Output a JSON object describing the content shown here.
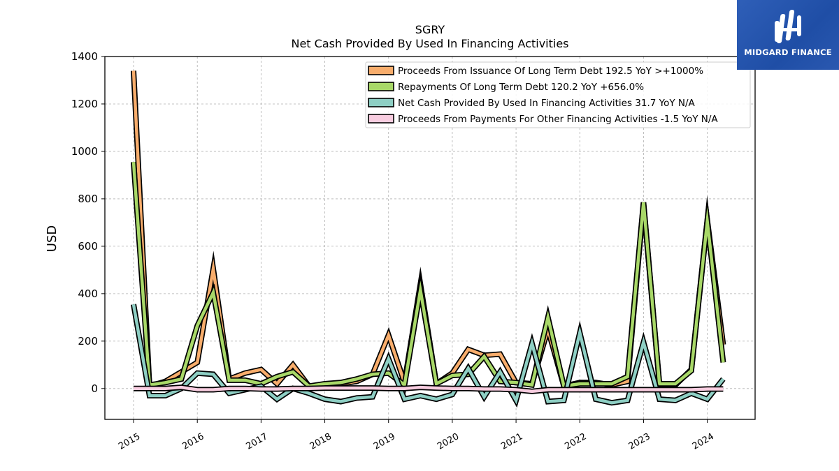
{
  "brand": {
    "name": "MIDGARD FINANCE",
    "icon": "midgard-logo-icon"
  },
  "colors": {
    "proceeds_debt": "#f8ad6c",
    "repayments_debt": "#a8d868",
    "net_cash": "#8ecfc4",
    "other_financing": "#f8cde0",
    "grid": "#b0b0b0",
    "brand_blue": "#2553ab"
  },
  "chart_data": {
    "type": "line",
    "title": "SGRY",
    "subtitle": "Net Cash Provided By Used In Financing Activities",
    "xlabel": "",
    "ylabel": "USD",
    "ylim": [
      -130,
      1400
    ],
    "yticks": [
      0,
      200,
      400,
      600,
      800,
      1000,
      1200,
      1400
    ],
    "xlim": [
      2014.55,
      2024.75
    ],
    "xticks": [
      "2015",
      "2016",
      "2017",
      "2018",
      "2019",
      "2020",
      "2021",
      "2022",
      "2023",
      "2024"
    ],
    "grid": true,
    "legend_position": "top-right",
    "x": [
      2015.0,
      2015.25,
      2015.5,
      2015.75,
      2016.0,
      2016.25,
      2016.5,
      2016.75,
      2017.0,
      2017.25,
      2017.5,
      2017.75,
      2018.0,
      2018.25,
      2018.5,
      2018.75,
      2019.0,
      2019.25,
      2019.5,
      2019.75,
      2020.0,
      2020.25,
      2020.5,
      2020.75,
      2021.0,
      2021.25,
      2021.5,
      2021.75,
      2022.0,
      2022.25,
      2022.5,
      2022.75,
      2023.0,
      2023.25,
      2023.5,
      2023.75,
      2024.0,
      2024.25
    ],
    "series": [
      {
        "name": "Proceeds From Issuance Of Long Term Debt  192.5 YoY >+1000%",
        "color": "#f8ad6c",
        "values": [
          1340,
          10,
          30,
          70,
          110,
          505,
          40,
          65,
          80,
          20,
          100,
          10,
          15,
          20,
          30,
          60,
          225,
          25,
          440,
          20,
          65,
          165,
          140,
          145,
          25,
          20,
          250,
          10,
          25,
          25,
          15,
          30,
          780,
          15,
          15,
          80,
          710,
          185
        ]
      },
      {
        "name": "Repayments Of Long Term Debt  120.2 YoY +656.0%",
        "color": "#a8d868",
        "values": [
          955,
          15,
          25,
          40,
          265,
          405,
          35,
          35,
          20,
          50,
          70,
          10,
          20,
          25,
          40,
          60,
          65,
          15,
          415,
          20,
          55,
          60,
          135,
          30,
          25,
          15,
          300,
          10,
          20,
          20,
          20,
          50,
          785,
          20,
          20,
          75,
          705,
          110
        ]
      },
      {
        "name": "Net Cash Provided By Used In Financing Activities  31.7 YoY N/A",
        "color": "#8ecfc4",
        "values": [
          355,
          -30,
          -30,
          0,
          65,
          60,
          -20,
          -5,
          10,
          -45,
          0,
          -20,
          -45,
          -55,
          -40,
          -35,
          125,
          -45,
          -30,
          -45,
          -25,
          85,
          -35,
          70,
          -50,
          190,
          -55,
          -50,
          235,
          -45,
          -60,
          -50,
          195,
          -45,
          -50,
          -20,
          -45,
          40
        ]
      },
      {
        "name": "Proceeds From Payments For Other Financing Activities  -1.5 YoY N/A",
        "color": "#f8cde0",
        "values": [
          0,
          0,
          0,
          5,
          -5,
          -5,
          0,
          0,
          -2,
          -2,
          0,
          0,
          2,
          2,
          2,
          2,
          0,
          0,
          5,
          2,
          0,
          0,
          -2,
          -2,
          -5,
          -12,
          -5,
          -5,
          -5,
          -5,
          -5,
          -5,
          -5,
          -5,
          -5,
          -5,
          -2,
          -2
        ]
      }
    ]
  }
}
